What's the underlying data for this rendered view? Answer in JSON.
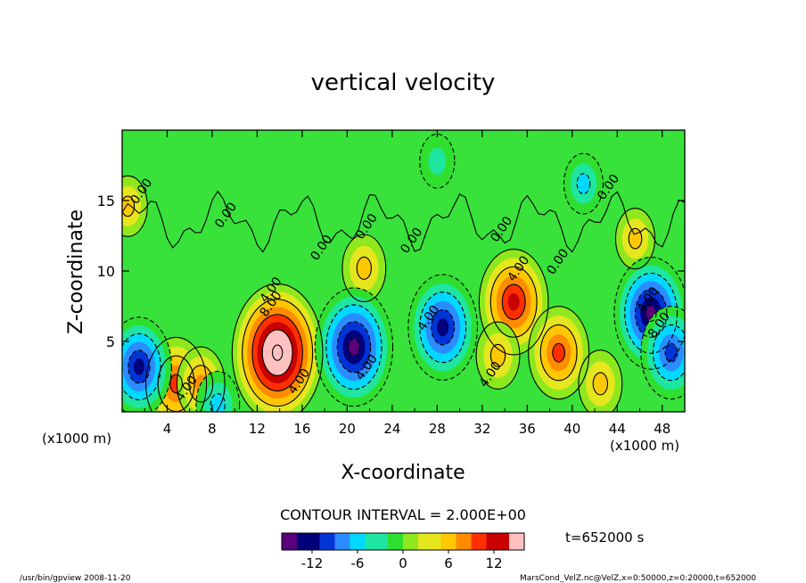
{
  "chart_data": {
    "type": "heatmap",
    "title": "vertical velocity",
    "xlabel": "X-coordinate",
    "ylabel": "Z-coordinate",
    "x_unit_left": "(x1000 m)",
    "x_unit_right": "(x1000 m)",
    "xlim": [
      0,
      50
    ],
    "ylim": [
      0,
      20
    ],
    "xticks": [
      4,
      8,
      12,
      16,
      20,
      24,
      28,
      32,
      36,
      40,
      44,
      48
    ],
    "yticks": [
      5,
      10,
      15
    ],
    "contour_interval_text": "CONTOUR INTERVAL = 2.000E+00",
    "time_text": "t=652000 s",
    "colorbar": {
      "min": -16,
      "max": 16,
      "ticks": [
        -12,
        -6,
        0,
        6,
        12
      ],
      "colors": [
        "#5a007a",
        "#00007a",
        "#0034d6",
        "#2a8cff",
        "#00d8ff",
        "#1ee6a0",
        "#2fdf2f",
        "#8fe81e",
        "#e6e61e",
        "#ffc800",
        "#ff8c00",
        "#ff3000",
        "#c80000",
        "#ffc0c0"
      ]
    },
    "contour_labels": [
      "0.00",
      "0.00",
      "0.00",
      "0.00",
      "0.00",
      "0.00",
      "0.00",
      "0.00",
      "4.00",
      "4.00",
      "4.00",
      "4.00",
      "4.00",
      "8.00",
      "4.00",
      "4.00",
      "4.00",
      "8.00"
    ],
    "features": [
      {
        "name": "updraft",
        "x": 13.8,
        "z": 4.2,
        "w": 17
      },
      {
        "name": "updraft",
        "x": 4.8,
        "z": 2.0,
        "w": 10
      },
      {
        "name": "updraft",
        "x": 7.0,
        "z": 2.0,
        "w": 7
      },
      {
        "name": "updraft",
        "x": 34.8,
        "z": 7.8,
        "w": 12
      },
      {
        "name": "updraft",
        "x": 38.8,
        "z": 4.2,
        "w": 10
      },
      {
        "name": "updraft",
        "x": 33.4,
        "z": 4.0,
        "w": 6
      },
      {
        "name": "updraft",
        "x": 42.5,
        "z": 2.0,
        "w": 6
      },
      {
        "name": "updraft",
        "x": 21.5,
        "z": 10.2,
        "w": 6
      },
      {
        "name": "updraft",
        "x": 45.6,
        "z": 12.3,
        "w": 5
      },
      {
        "name": "updraft",
        "x": 0.5,
        "z": 14.6,
        "w": 5
      },
      {
        "name": "downdraft",
        "x": 20.6,
        "z": 4.6,
        "w": -14
      },
      {
        "name": "downdraft",
        "x": 1.5,
        "z": 3.2,
        "w": -11
      },
      {
        "name": "downdraft",
        "x": 28.5,
        "z": 6.0,
        "w": -12
      },
      {
        "name": "downdraft",
        "x": 47.0,
        "z": 7.0,
        "w": -13
      },
      {
        "name": "downdraft",
        "x": 48.8,
        "z": 4.2,
        "w": -10
      },
      {
        "name": "downdraft",
        "x": 8.5,
        "z": 0.5,
        "w": -6
      },
      {
        "name": "downdraft",
        "x": 41.0,
        "z": 16.2,
        "w": -5
      },
      {
        "name": "downdraft",
        "x": 28.0,
        "z": 17.8,
        "w": -4
      }
    ]
  },
  "footer": {
    "left": "/usr/bin/gpview   2008-11-20",
    "right": "MarsCond_VelZ.nc@VelZ,x=0:50000,z=0:20000,t=652000"
  }
}
